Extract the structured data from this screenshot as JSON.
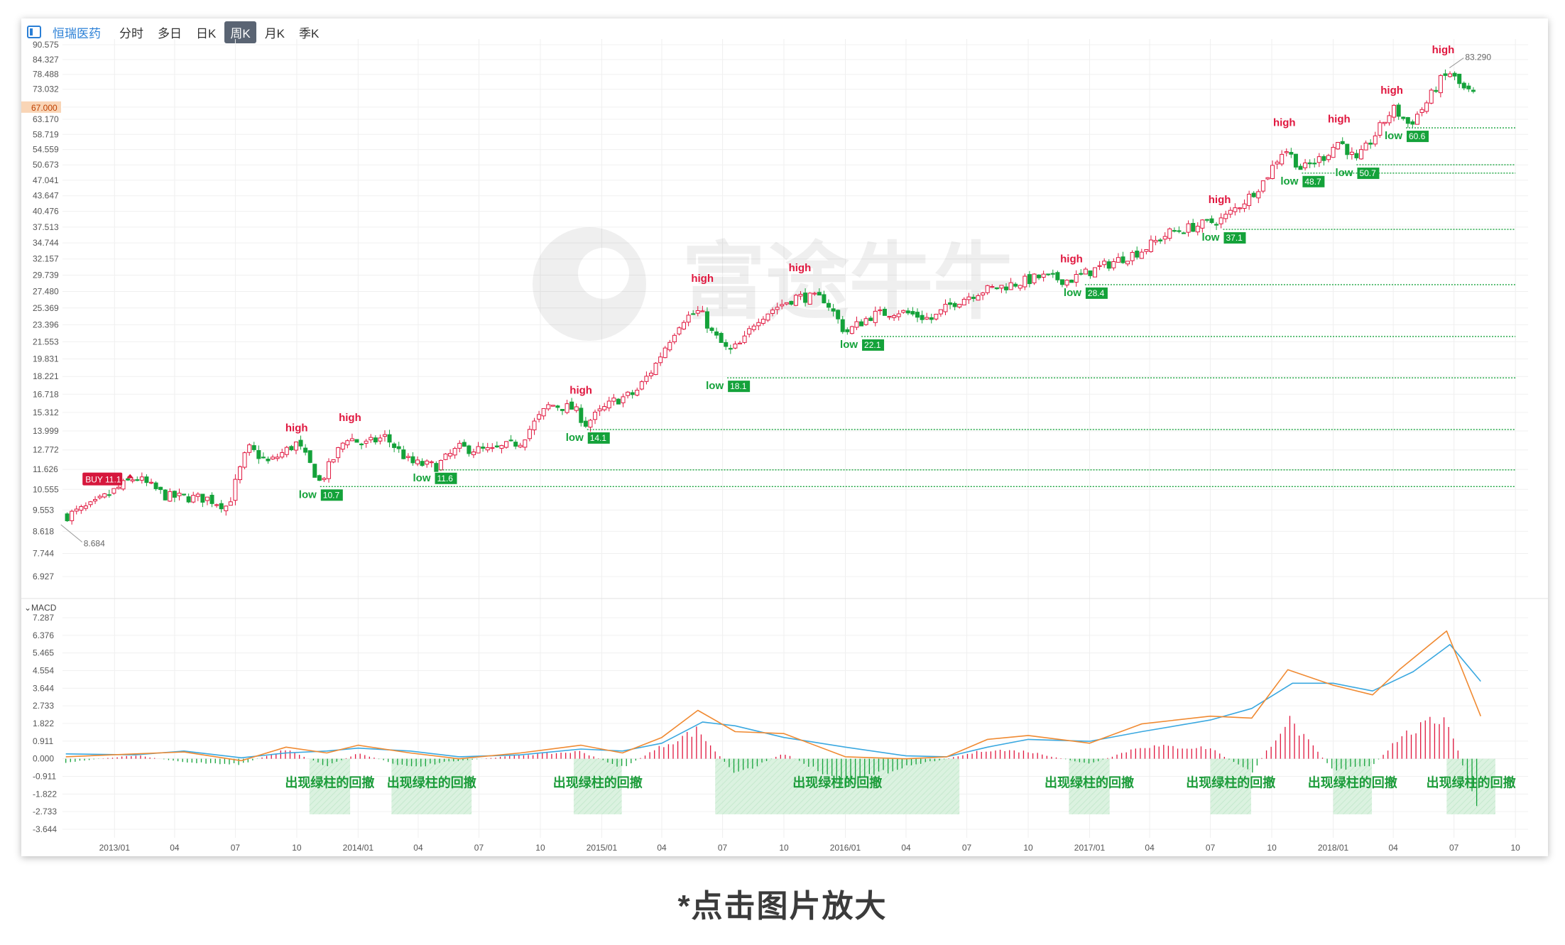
{
  "toolbar": {
    "stock_name": "恒瑞医药",
    "tabs": [
      {
        "label": "分时",
        "active": false
      },
      {
        "label": "多日",
        "active": false
      },
      {
        "label": "日K",
        "active": false
      },
      {
        "label": "周K",
        "active": true
      },
      {
        "label": "月K",
        "active": false
      },
      {
        "label": "季K",
        "active": false
      }
    ]
  },
  "watermark": "富途牛牛",
  "footer_text": "*点击图片放大",
  "macd_label": "MACD",
  "colors": {
    "up": "#e0163e",
    "down": "#14a23a",
    "dif": "#3aa8e0",
    "dea": "#f08a32",
    "accent": "#2a7fd6",
    "buy": "#d6173c",
    "current_price": "#f4b27a"
  },
  "chart_data": [
    {
      "type": "candlestick",
      "title": "恒瑞医药",
      "scale": "log",
      "ylim": [
        6.927,
        90.575
      ],
      "y_ticks": [
        "90.575",
        "84.327",
        "78.488",
        "73.032",
        "67.000",
        "63.170",
        "58.719",
        "54.559",
        "50.673",
        "47.041",
        "43.647",
        "40.476",
        "37.513",
        "34.744",
        "32.157",
        "29.739",
        "27.480",
        "25.369",
        "23.396",
        "21.553",
        "19.831",
        "18.221",
        "16.718",
        "15.312",
        "13.999",
        "12.772",
        "11.626",
        "10.555",
        "9.553",
        "8.618",
        "7.744",
        "6.927"
      ],
      "x_range": [
        "2012-10-15",
        "2018-10-20"
      ],
      "x_ticks": [
        {
          "date": "2013-01-01",
          "label": "2013/01"
        },
        {
          "date": "2013-04-01",
          "label": "04"
        },
        {
          "date": "2013-07-01",
          "label": "07"
        },
        {
          "date": "2013-10-01",
          "label": "10"
        },
        {
          "date": "2014-01-01",
          "label": "2014/01"
        },
        {
          "date": "2014-04-01",
          "label": "04"
        },
        {
          "date": "2014-07-01",
          "label": "07"
        },
        {
          "date": "2014-10-01",
          "label": "10"
        },
        {
          "date": "2015-01-01",
          "label": "2015/01"
        },
        {
          "date": "2015-04-01",
          "label": "04"
        },
        {
          "date": "2015-07-01",
          "label": "07"
        },
        {
          "date": "2015-10-01",
          "label": "10"
        },
        {
          "date": "2016-01-01",
          "label": "2016/01"
        },
        {
          "date": "2016-04-01",
          "label": "04"
        },
        {
          "date": "2016-07-01",
          "label": "07"
        },
        {
          "date": "2016-10-01",
          "label": "10"
        },
        {
          "date": "2017-01-01",
          "label": "2017/01"
        },
        {
          "date": "2017-04-01",
          "label": "04"
        },
        {
          "date": "2017-07-01",
          "label": "07"
        },
        {
          "date": "2017-10-01",
          "label": "10"
        },
        {
          "date": "2018-01-01",
          "label": "2018/01"
        },
        {
          "date": "2018-04-01",
          "label": "04"
        },
        {
          "date": "2018-07-01",
          "label": "07"
        },
        {
          "date": "2018-10-01",
          "label": "10"
        }
      ],
      "price_path": [
        [
          "2012-10-22",
          9.3
        ],
        [
          "2012-12-01",
          9.8
        ],
        [
          "2013-02-01",
          11.2
        ],
        [
          "2013-03-20",
          10.2
        ],
        [
          "2013-05-20",
          10.1
        ],
        [
          "2013-06-20",
          9.7
        ],
        [
          "2013-07-20",
          12.9
        ],
        [
          "2013-08-20",
          12.0
        ],
        [
          "2013-10-01",
          13.2
        ],
        [
          "2013-11-05",
          10.9
        ],
        [
          "2013-12-15",
          13.6
        ],
        [
          "2014-01-10",
          13.1
        ],
        [
          "2014-02-10",
          13.6
        ],
        [
          "2014-03-20",
          12.0
        ],
        [
          "2014-04-28",
          11.8
        ],
        [
          "2014-06-01",
          12.9
        ],
        [
          "2014-07-20",
          12.7
        ],
        [
          "2014-09-01",
          13.3
        ],
        [
          "2014-10-15",
          15.9
        ],
        [
          "2014-11-20",
          15.6
        ],
        [
          "2014-12-08",
          14.5
        ],
        [
          "2015-01-20",
          16.2
        ],
        [
          "2015-02-20",
          16.8
        ],
        [
          "2015-03-20",
          19.0
        ],
        [
          "2015-05-01",
          24.0
        ],
        [
          "2015-05-28",
          25.0
        ],
        [
          "2015-06-15",
          22.5
        ],
        [
          "2015-07-10",
          20.5
        ],
        [
          "2015-08-01",
          21.5
        ],
        [
          "2015-08-20",
          24.0
        ],
        [
          "2015-09-20",
          25.5
        ],
        [
          "2015-10-20",
          26.8
        ],
        [
          "2015-12-01",
          26.5
        ],
        [
          "2016-01-01",
          22.5
        ],
        [
          "2016-02-10",
          24.5
        ],
        [
          "2016-03-20",
          25.0
        ],
        [
          "2016-05-10",
          24.0
        ],
        [
          "2016-06-10",
          26.0
        ],
        [
          "2016-07-20",
          27.5
        ],
        [
          "2016-09-10",
          28.5
        ],
        [
          "2016-10-20",
          29.5
        ],
        [
          "2016-12-01",
          29.0
        ],
        [
          "2017-01-20",
          31.0
        ],
        [
          "2017-03-20",
          33.5
        ],
        [
          "2017-05-01",
          36.5
        ],
        [
          "2017-06-20",
          38.0
        ],
        [
          "2017-07-20",
          39.0
        ],
        [
          "2017-08-25",
          43.0
        ],
        [
          "2017-09-20",
          47.0
        ],
        [
          "2017-10-20",
          55.0
        ],
        [
          "2017-11-15",
          49.5
        ],
        [
          "2017-12-20",
          53.0
        ],
        [
          "2018-01-10",
          57.0
        ],
        [
          "2018-02-05",
          51.5
        ],
        [
          "2018-03-01",
          57.5
        ],
        [
          "2018-04-01",
          66.5
        ],
        [
          "2018-04-25",
          61.5
        ],
        [
          "2018-05-20",
          68.0
        ],
        [
          "2018-06-10",
          76.0
        ],
        [
          "2018-06-25",
          79.0
        ],
        [
          "2018-07-15",
          73.0
        ],
        [
          "2018-08-05",
          70.5
        ]
      ],
      "current_price": "67.000",
      "annotations": {
        "max_price": {
          "date": "2018-06-20",
          "value": "83.290"
        },
        "min_price": {
          "date": "2012-11-05",
          "value": "8.684"
        },
        "buy": {
          "date": "2013-02-05",
          "value": 11.1,
          "label": "BUY 11.1"
        },
        "highs": [
          {
            "date": "2013-10-01",
            "value": 13.6,
            "label": "high"
          },
          {
            "date": "2013-12-20",
            "value": 14.3,
            "label": "high"
          },
          {
            "date": "2014-12-01",
            "value": 16.3,
            "label": "high"
          },
          {
            "date": "2015-06-01",
            "value": 28.0,
            "label": "high"
          },
          {
            "date": "2015-10-25",
            "value": 29.5,
            "label": "high"
          },
          {
            "date": "2016-12-05",
            "value": 30.8,
            "label": "high"
          },
          {
            "date": "2017-07-15",
            "value": 41.0,
            "label": "high"
          },
          {
            "date": "2017-10-20",
            "value": 59.5,
            "label": "high"
          },
          {
            "date": "2018-01-10",
            "value": 60.5,
            "label": "high"
          },
          {
            "date": "2018-03-30",
            "value": 69.5,
            "label": "high"
          },
          {
            "date": "2018-06-15",
            "value": 84.5,
            "label": "high"
          }
        ],
        "lows": [
          {
            "date": "2013-11-05",
            "value": 10.7,
            "end": "2018-10-01",
            "label": "low",
            "price": "10.7"
          },
          {
            "date": "2014-04-25",
            "value": 11.6,
            "end": "2018-10-01",
            "label": "low",
            "price": "11.6"
          },
          {
            "date": "2014-12-10",
            "value": 14.1,
            "end": "2018-10-01",
            "label": "low",
            "price": "14.1"
          },
          {
            "date": "2015-07-08",
            "value": 18.1,
            "end": "2018-10-01",
            "label": "low",
            "price": "18.1"
          },
          {
            "date": "2016-01-25",
            "value": 22.1,
            "end": "2018-10-01",
            "label": "low",
            "price": "22.1"
          },
          {
            "date": "2016-12-25",
            "value": 28.4,
            "end": "2018-10-01",
            "label": "low",
            "price": "28.4"
          },
          {
            "date": "2017-07-20",
            "value": 37.1,
            "end": "2018-10-01",
            "label": "low",
            "price": "37.1"
          },
          {
            "date": "2017-11-15",
            "value": 48.7,
            "end": "2018-10-01",
            "label": "low",
            "price": "48.7"
          },
          {
            "date": "2018-02-05",
            "value": 50.7,
            "end": "2018-10-01",
            "label": "low",
            "price": "50.7"
          },
          {
            "date": "2018-04-20",
            "value": 60.6,
            "end": "2018-10-01",
            "label": "low",
            "price": "60.6"
          }
        ]
      }
    },
    {
      "type": "line",
      "title": "MACD",
      "ylim": [
        -3.644,
        7.287
      ],
      "y_ticks": [
        "7.287",
        "6.376",
        "5.465",
        "4.554",
        "3.644",
        "2.733",
        "1.822",
        "0.911",
        "0.000",
        "-0.911",
        "-1.822",
        "-2.733",
        "-3.644"
      ],
      "x_range": [
        "2012-10-15",
        "2018-10-20"
      ],
      "series": [
        {
          "color": "#3aa8e0",
          "points": [
            [
              "2012-10-20",
              0.25
            ],
            [
              "2013-02-01",
              0.2
            ],
            [
              "2013-04-15",
              0.4
            ],
            [
              "2013-07-10",
              0.05
            ],
            [
              "2013-09-15",
              0.3
            ],
            [
              "2013-11-15",
              0.4
            ],
            [
              "2014-01-01",
              0.55
            ],
            [
              "2014-03-20",
              0.4
            ],
            [
              "2014-06-01",
              0.1
            ],
            [
              "2014-09-01",
              0.2
            ],
            [
              "2014-12-01",
              0.5
            ],
            [
              "2015-02-01",
              0.4
            ],
            [
              "2015-04-01",
              0.8
            ],
            [
              "2015-06-01",
              1.9
            ],
            [
              "2015-07-20",
              1.7
            ],
            [
              "2015-10-01",
              1.1
            ],
            [
              "2016-01-01",
              0.6
            ],
            [
              "2016-04-01",
              0.15
            ],
            [
              "2016-06-01",
              0.1
            ],
            [
              "2016-08-01",
              0.6
            ],
            [
              "2016-10-01",
              1.0
            ],
            [
              "2017-01-01",
              0.9
            ],
            [
              "2017-03-20",
              1.4
            ],
            [
              "2017-07-01",
              2.0
            ],
            [
              "2017-09-01",
              2.6
            ],
            [
              "2017-11-01",
              3.9
            ],
            [
              "2018-01-01",
              3.9
            ],
            [
              "2018-03-01",
              3.5
            ],
            [
              "2018-05-01",
              4.5
            ],
            [
              "2018-06-25",
              5.9
            ],
            [
              "2018-08-10",
              4.0
            ]
          ]
        },
        {
          "color": "#f08a32",
          "points": [
            [
              "2012-10-20",
              0.1
            ],
            [
              "2013-02-01",
              0.25
            ],
            [
              "2013-04-15",
              0.35
            ],
            [
              "2013-07-10",
              -0.1
            ],
            [
              "2013-09-15",
              0.6
            ],
            [
              "2013-11-15",
              0.3
            ],
            [
              "2014-01-01",
              0.7
            ],
            [
              "2014-03-20",
              0.3
            ],
            [
              "2014-06-01",
              0.0
            ],
            [
              "2014-09-01",
              0.3
            ],
            [
              "2014-12-01",
              0.7
            ],
            [
              "2015-02-01",
              0.3
            ],
            [
              "2015-04-01",
              1.1
            ],
            [
              "2015-05-25",
              2.5
            ],
            [
              "2015-07-20",
              1.4
            ],
            [
              "2015-10-01",
              1.3
            ],
            [
              "2016-01-01",
              0.1
            ],
            [
              "2016-04-01",
              0.0
            ],
            [
              "2016-06-01",
              0.1
            ],
            [
              "2016-08-01",
              1.0
            ],
            [
              "2016-10-01",
              1.2
            ],
            [
              "2017-01-01",
              0.8
            ],
            [
              "2017-03-20",
              1.8
            ],
            [
              "2017-07-01",
              2.2
            ],
            [
              "2017-09-01",
              2.1
            ],
            [
              "2017-10-25",
              4.6
            ],
            [
              "2018-01-01",
              3.8
            ],
            [
              "2018-03-01",
              3.3
            ],
            [
              "2018-04-10",
              4.6
            ],
            [
              "2018-06-20",
              6.6
            ],
            [
              "2018-08-10",
              2.2
            ]
          ]
        }
      ],
      "histogram_path": [
        [
          "2012-10-20",
          -0.2
        ],
        [
          "2013-02-01",
          0.2
        ],
        [
          "2013-04-15",
          -0.2
        ],
        [
          "2013-07-10",
          -0.3
        ],
        [
          "2013-09-15",
          0.5
        ],
        [
          "2013-11-15",
          -0.4
        ],
        [
          "2014-01-01",
          0.3
        ],
        [
          "2014-03-20",
          -0.5
        ],
        [
          "2014-05-10",
          -0.2
        ],
        [
          "2014-09-01",
          0.2
        ],
        [
          "2014-12-01",
          0.4
        ],
        [
          "2015-02-01",
          -0.5
        ],
        [
          "2015-04-01",
          0.7
        ],
        [
          "2015-05-25",
          1.6
        ],
        [
          "2015-07-20",
          -0.9
        ],
        [
          "2015-10-01",
          0.3
        ],
        [
          "2016-01-01",
          -1.4
        ],
        [
          "2016-04-01",
          -0.4
        ],
        [
          "2016-06-01",
          0.0
        ],
        [
          "2016-08-01",
          0.5
        ],
        [
          "2016-10-01",
          0.4
        ],
        [
          "2017-01-01",
          -0.3
        ],
        [
          "2017-03-20",
          0.7
        ],
        [
          "2017-07-01",
          0.6
        ],
        [
          "2017-09-01",
          -0.8
        ],
        [
          "2017-10-25",
          2.2
        ],
        [
          "2018-01-01",
          -0.6
        ],
        [
          "2018-03-01",
          -0.4
        ],
        [
          "2018-04-10",
          1.2
        ],
        [
          "2018-06-20",
          2.4
        ],
        [
          "2018-08-10",
          -3.5
        ]
      ],
      "pullback_zones": [
        {
          "start": "2013-10-20",
          "end": "2013-12-20",
          "label": "出现绿柱的回撤"
        },
        {
          "start": "2014-02-20",
          "end": "2014-06-20",
          "label": "出现绿柱的回撤"
        },
        {
          "start": "2014-11-20",
          "end": "2015-01-31",
          "label": "出现绿柱的回撤"
        },
        {
          "start": "2015-06-20",
          "end": "2016-06-20",
          "label": "出现绿柱的回撤"
        },
        {
          "start": "2016-12-01",
          "end": "2017-01-31",
          "label": "出现绿柱的回撤"
        },
        {
          "start": "2017-07-01",
          "end": "2017-08-31",
          "label": "出现绿柱的回撤"
        },
        {
          "start": "2018-01-01",
          "end": "2018-02-28",
          "label": "出现绿柱的回撤"
        },
        {
          "start": "2018-06-20",
          "end": "2018-09-01",
          "label": "出现绿柱的回撤"
        }
      ]
    }
  ]
}
